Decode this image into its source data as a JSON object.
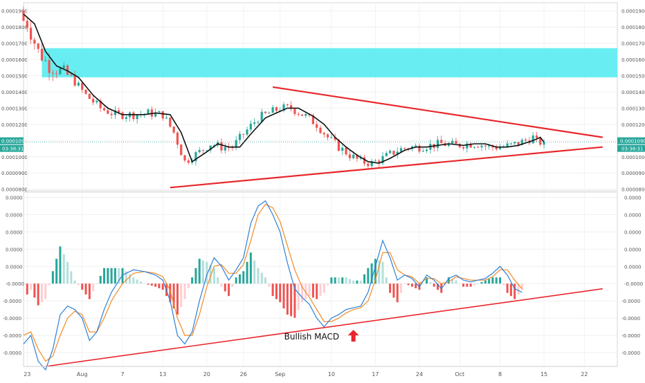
{
  "chart_data": [
    {
      "type": "candlestick",
      "panel": "price",
      "price_axis": {
        "min": 7.9e-05,
        "max": 0.000195,
        "ticks": [
          "0.0001900",
          "0.0001800",
          "0.0001700",
          "0.0001600",
          "0.0001500",
          "0.0001400",
          "0.0001300",
          "0.0001200",
          "0.0001100",
          "0.0001000",
          "0.0000900",
          "0.0000800"
        ],
        "tick_values": [
          0.00019,
          0.00018,
          0.00017,
          0.00016,
          0.00015,
          0.00014,
          0.00013,
          0.00012,
          0.00011,
          0.0001,
          9e-05,
          8e-05
        ]
      },
      "last_price_label": "0.0001090",
      "countdown_label": "03:38:31",
      "last_price": 0.000109,
      "resistance_zone": {
        "from": 0.000149,
        "to": 0.000167,
        "color": "#4DEBF0"
      },
      "moving_average_points": [
        [
          0,
          0.000188
        ],
        [
          3,
          0.000182
        ],
        [
          6,
          0.000165
        ],
        [
          9,
          0.000156
        ],
        [
          12,
          0.000153
        ],
        [
          15,
          0.000149
        ],
        [
          19,
          0.000138
        ],
        [
          23,
          0.00013
        ],
        [
          27,
          0.000126
        ],
        [
          30,
          0.000126
        ],
        [
          33,
          0.000126
        ],
        [
          36,
          0.000127
        ],
        [
          40,
          0.000126
        ],
        [
          43,
          0.000115
        ],
        [
          46,
          9.7e-05
        ],
        [
          50,
          0.000103
        ],
        [
          53,
          0.000108
        ],
        [
          56,
          0.000106
        ],
        [
          59,
          0.000106
        ],
        [
          62,
          0.000114
        ],
        [
          66,
          0.000124
        ],
        [
          69,
          0.000127
        ],
        [
          72,
          0.00013
        ],
        [
          75,
          0.00013
        ],
        [
          79,
          0.000125
        ],
        [
          82,
          0.00012
        ],
        [
          85,
          0.000112
        ],
        [
          88,
          0.000106
        ],
        [
          91,
          0.000101
        ],
        [
          94,
          9.7e-05
        ],
        [
          97,
          9.6e-05
        ],
        [
          100,
          9.9e-05
        ],
        [
          104,
          0.000104
        ],
        [
          107,
          0.000106
        ],
        [
          110,
          0.000106
        ],
        [
          113,
          0.000107
        ],
        [
          116,
          0.000108
        ],
        [
          120,
          0.000107
        ],
        [
          123,
          0.000108
        ],
        [
          126,
          0.000108
        ],
        [
          129,
          0.000106
        ],
        [
          132,
          0.000106
        ],
        [
          135,
          0.000107
        ],
        [
          139,
          0.00011
        ],
        [
          141,
          0.000112
        ],
        [
          142,
          0.000109
        ]
      ],
      "trendlines": [
        {
          "name": "upper",
          "color": "#E8262B",
          "from": [
            68,
            0.000143
          ],
          "to": [
            158,
            0.000112
          ]
        },
        {
          "name": "lower",
          "color": "#E8262B",
          "from": [
            40,
            8.1e-05
          ],
          "to": [
            158,
            0.000106
          ]
        }
      ],
      "candle_seed": "trend-following synthetic candles approximating the depicted price path"
    },
    {
      "type": "macd",
      "panel": "indicator",
      "tick_labels": [
        "0.0000",
        "0.0000",
        "0.0000",
        "0.0000",
        "0.0000",
        "-0.0000",
        "-0.0000",
        "-0.0000",
        "-0.0000",
        "-0.0000"
      ],
      "tick_values": [
        5e-06,
        4e-06,
        3e-06,
        2e-06,
        1e-06,
        0.0,
        -1e-06,
        -2e-06,
        -3e-06,
        -4e-06
      ],
      "range": [
        -4.8e-06,
        5.3e-06
      ],
      "macd_color": "#2C7FD6",
      "signal_color": "#F08A24",
      "hist_up_color": "#26A69A",
      "hist_down_color": "#EF5350",
      "macd_points": [
        [
          0,
          -3.5e-06
        ],
        [
          2,
          -3e-06
        ],
        [
          4,
          -4.5e-06
        ],
        [
          6,
          -5e-06
        ],
        [
          8,
          -3.8e-06
        ],
        [
          10,
          -1.8e-06
        ],
        [
          12,
          -1.3e-06
        ],
        [
          14,
          -1.5e-06
        ],
        [
          16,
          -2e-06
        ],
        [
          18,
          -3.3e-06
        ],
        [
          20,
          -2.8e-06
        ],
        [
          22,
          -1.5e-06
        ],
        [
          24,
          -5e-07
        ],
        [
          27,
          5e-07
        ],
        [
          30,
          8e-07
        ],
        [
          33,
          7e-07
        ],
        [
          36,
          5e-07
        ],
        [
          38,
          2e-07
        ],
        [
          40,
          -1e-06
        ],
        [
          42,
          -3e-06
        ],
        [
          44,
          -3.5e-06
        ],
        [
          46,
          -2.8e-06
        ],
        [
          48,
          -1e-06
        ],
        [
          50,
          5e-07
        ],
        [
          52,
          1.5e-06
        ],
        [
          54,
          1e-06
        ],
        [
          56,
          2e-07
        ],
        [
          58,
          8e-07
        ],
        [
          60,
          1.5e-06
        ],
        [
          62,
          3.5e-06
        ],
        [
          64,
          4.5e-06
        ],
        [
          66,
          4.8e-06
        ],
        [
          68,
          4e-06
        ],
        [
          70,
          3e-06
        ],
        [
          72,
          1.2e-06
        ],
        [
          74,
          -3e-07
        ],
        [
          76,
          -8e-07
        ],
        [
          78,
          -1.2e-06
        ],
        [
          80,
          -2e-06
        ],
        [
          82,
          -2.5e-06
        ],
        [
          84,
          -2e-06
        ],
        [
          86,
          -1.8e-06
        ],
        [
          88,
          -1.5e-06
        ],
        [
          90,
          -1.4e-06
        ],
        [
          92,
          -1.3e-06
        ],
        [
          94,
          -5e-07
        ],
        [
          96,
          1e-06
        ],
        [
          98,
          2.5e-06
        ],
        [
          100,
          1.5e-06
        ],
        [
          102,
          2e-07
        ],
        [
          104,
          5e-07
        ],
        [
          106,
          3e-07
        ],
        [
          108,
          -2e-07
        ],
        [
          110,
          5e-07
        ],
        [
          112,
          2e-07
        ],
        [
          114,
          -3e-07
        ],
        [
          116,
          3e-07
        ],
        [
          118,
          5e-07
        ],
        [
          120,
          2e-07
        ],
        [
          122,
          1e-07
        ],
        [
          124,
          2e-07
        ],
        [
          126,
          3e-07
        ],
        [
          128,
          6e-07
        ],
        [
          130,
          1e-06
        ],
        [
          132,
          5e-07
        ],
        [
          134,
          -3e-07
        ],
        [
          136,
          -5e-07
        ]
      ],
      "signal_points": [
        [
          0,
          -3e-06
        ],
        [
          2,
          -2.8e-06
        ],
        [
          4,
          -3.8e-06
        ],
        [
          6,
          -4.5e-06
        ],
        [
          8,
          -4.2e-06
        ],
        [
          10,
          -3e-06
        ],
        [
          12,
          -2e-06
        ],
        [
          14,
          -1.6e-06
        ],
        [
          16,
          -1.8e-06
        ],
        [
          18,
          -2.8e-06
        ],
        [
          20,
          -2.8e-06
        ],
        [
          22,
          -2e-06
        ],
        [
          24,
          -1e-06
        ],
        [
          27,
          0.0
        ],
        [
          30,
          6e-07
        ],
        [
          33,
          7e-07
        ],
        [
          36,
          6e-07
        ],
        [
          38,
          4e-07
        ],
        [
          40,
          -4e-07
        ],
        [
          42,
          -2e-06
        ],
        [
          44,
          -3e-06
        ],
        [
          46,
          -3e-06
        ],
        [
          48,
          -1.8e-06
        ],
        [
          50,
          -2e-07
        ],
        [
          52,
          1e-06
        ],
        [
          54,
          1.1e-06
        ],
        [
          56,
          6e-07
        ],
        [
          58,
          6e-07
        ],
        [
          60,
          1.1e-06
        ],
        [
          62,
          2.5e-06
        ],
        [
          64,
          4e-06
        ],
        [
          66,
          4.6e-06
        ],
        [
          68,
          4.4e-06
        ],
        [
          70,
          3.6e-06
        ],
        [
          72,
          2.2e-06
        ],
        [
          74,
          8e-07
        ],
        [
          76,
          -2e-07
        ],
        [
          78,
          -8e-07
        ],
        [
          80,
          -1.5e-06
        ],
        [
          82,
          -2.2e-06
        ],
        [
          84,
          -2.2e-06
        ],
        [
          86,
          -2e-06
        ],
        [
          88,
          -1.7e-06
        ],
        [
          90,
          -1.5e-06
        ],
        [
          92,
          -1.4e-06
        ],
        [
          94,
          -1e-06
        ],
        [
          96,
          2e-07
        ],
        [
          98,
          1.8e-06
        ],
        [
          100,
          1.8e-06
        ],
        [
          102,
          8e-07
        ],
        [
          104,
          5e-07
        ],
        [
          106,
          4e-07
        ],
        [
          108,
          0.0
        ],
        [
          110,
          3e-07
        ],
        [
          112,
          3e-07
        ],
        [
          114,
          0.0
        ],
        [
          116,
          1e-07
        ],
        [
          118,
          4e-07
        ],
        [
          120,
          3e-07
        ],
        [
          122,
          2e-07
        ],
        [
          124,
          2e-07
        ],
        [
          126,
          2e-07
        ],
        [
          128,
          4e-07
        ],
        [
          130,
          8e-07
        ],
        [
          132,
          8e-07
        ],
        [
          134,
          2e-07
        ],
        [
          136,
          -3e-07
        ]
      ],
      "trendline": {
        "color": "#E8262B",
        "from": [
          6,
          -4.8e-06
        ],
        "to": [
          158,
          -3e-07
        ]
      },
      "annotation": {
        "text": "Bullish MACD",
        "arrow": "up",
        "arrow_color": "#E8262B",
        "at": [
          90,
          -3e-06
        ]
      }
    }
  ],
  "x_axis": {
    "labels": [
      {
        "text": "23",
        "i": 1
      },
      {
        "text": "Aug",
        "i": 16
      },
      {
        "text": "7",
        "i": 27
      },
      {
        "text": "13",
        "i": 38
      },
      {
        "text": "20",
        "i": 50
      },
      {
        "text": "26",
        "i": 60
      },
      {
        "text": "Sep",
        "i": 70
      },
      {
        "text": "10",
        "i": 84
      },
      {
        "text": "17",
        "i": 96
      },
      {
        "text": "24",
        "i": 108
      },
      {
        "text": "Oct",
        "i": 119
      },
      {
        "text": "8",
        "i": 130
      },
      {
        "text": "15",
        "i": 142
      },
      {
        "text": "22",
        "i": 153
      }
    ],
    "max_index": 162
  }
}
